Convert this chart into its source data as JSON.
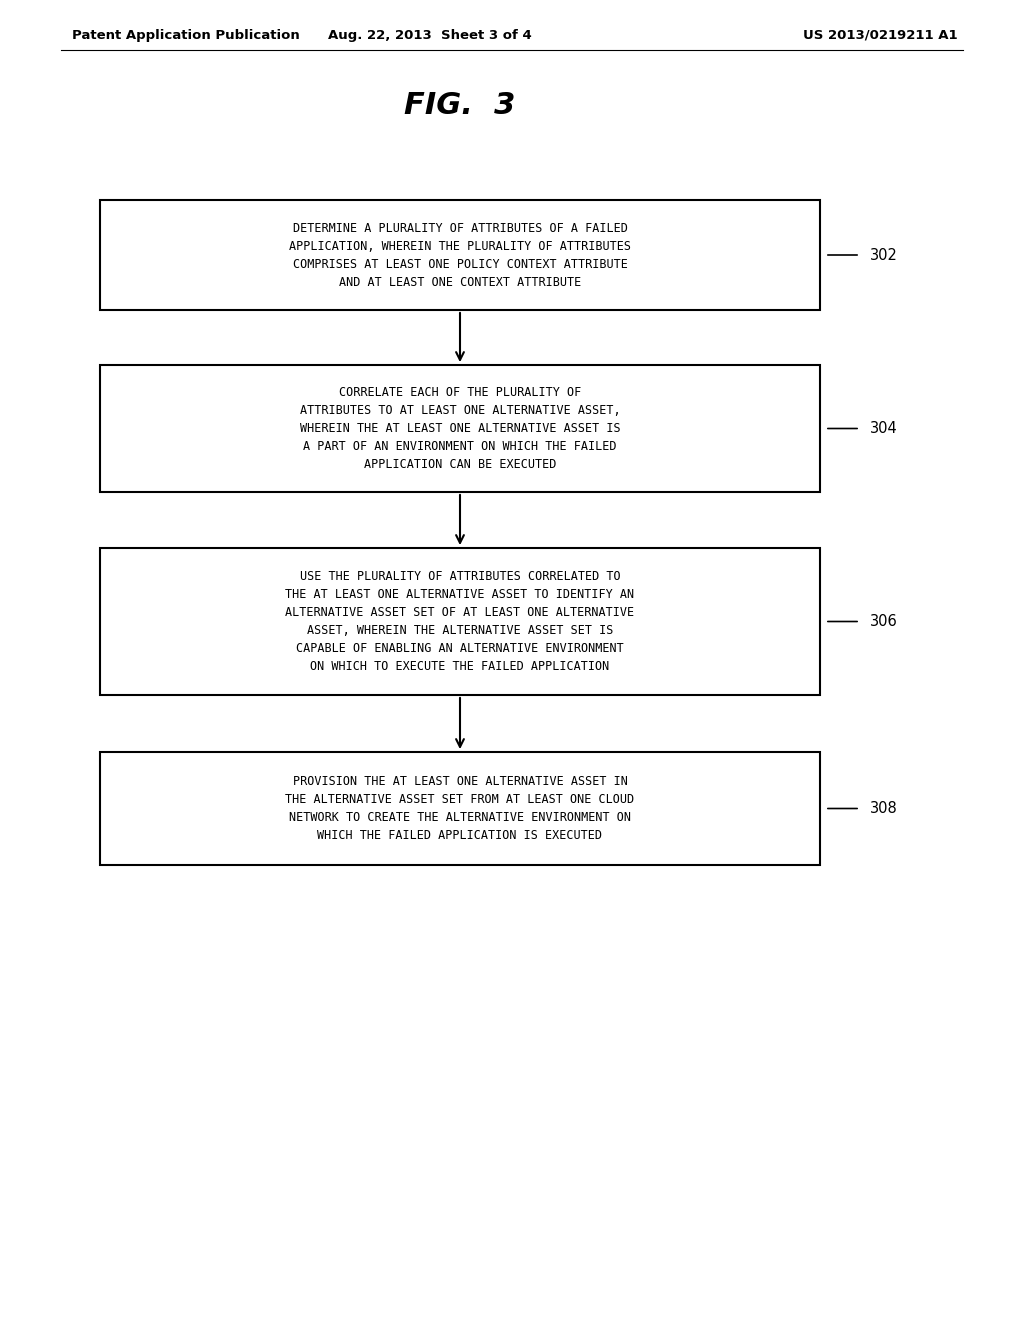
{
  "background_color": "#ffffff",
  "header_left": "Patent Application Publication",
  "header_center": "Aug. 22, 2013  Sheet 3 of 4",
  "header_right": "US 2013/0219211 A1",
  "figure_title": "FIG.  3",
  "boxes": [
    {
      "id": 302,
      "label": "302",
      "lines": [
        "DETERMINE A PLURALITY OF ATTRIBUTES OF A FAILED",
        "APPLICATION, WHEREIN THE PLURALITY OF ATTRIBUTES",
        "COMPRISES AT LEAST ONE POLICY CONTEXT ATTRIBUTE",
        "AND AT LEAST ONE CONTEXT ATTRIBUTE"
      ]
    },
    {
      "id": 304,
      "label": "304",
      "lines": [
        "CORRELATE EACH OF THE PLURALITY OF",
        "ATTRIBUTES TO AT LEAST ONE ALTERNATIVE ASSET,",
        "WHEREIN THE AT LEAST ONE ALTERNATIVE ASSET IS",
        "A PART OF AN ENVIRONMENT ON WHICH THE FAILED",
        "APPLICATION CAN BE EXECUTED"
      ]
    },
    {
      "id": 306,
      "label": "306",
      "lines": [
        "USE THE PLURALITY OF ATTRIBUTES CORRELATED TO",
        "THE AT LEAST ONE ALTERNATIVE ASSET TO IDENTIFY AN",
        "ALTERNATIVE ASSET SET OF AT LEAST ONE ALTERNATIVE",
        "ASSET, WHEREIN THE ALTERNATIVE ASSET SET IS",
        "CAPABLE OF ENABLING AN ALTERNATIVE ENVIRONMENT",
        "ON WHICH TO EXECUTE THE FAILED APPLICATION"
      ]
    },
    {
      "id": 308,
      "label": "308",
      "lines": [
        "PROVISION THE AT LEAST ONE ALTERNATIVE ASSET IN",
        "THE ALTERNATIVE ASSET SET FROM AT LEAST ONE CLOUD",
        "NETWORK TO CREATE THE ALTERNATIVE ENVIRONMENT ON",
        "WHICH THE FAILED APPLICATION IS EXECUTED"
      ]
    }
  ],
  "box_color": "#ffffff",
  "box_edge_color": "#000000",
  "text_color": "#000000",
  "arrow_color": "#000000",
  "font_family": "monospace"
}
